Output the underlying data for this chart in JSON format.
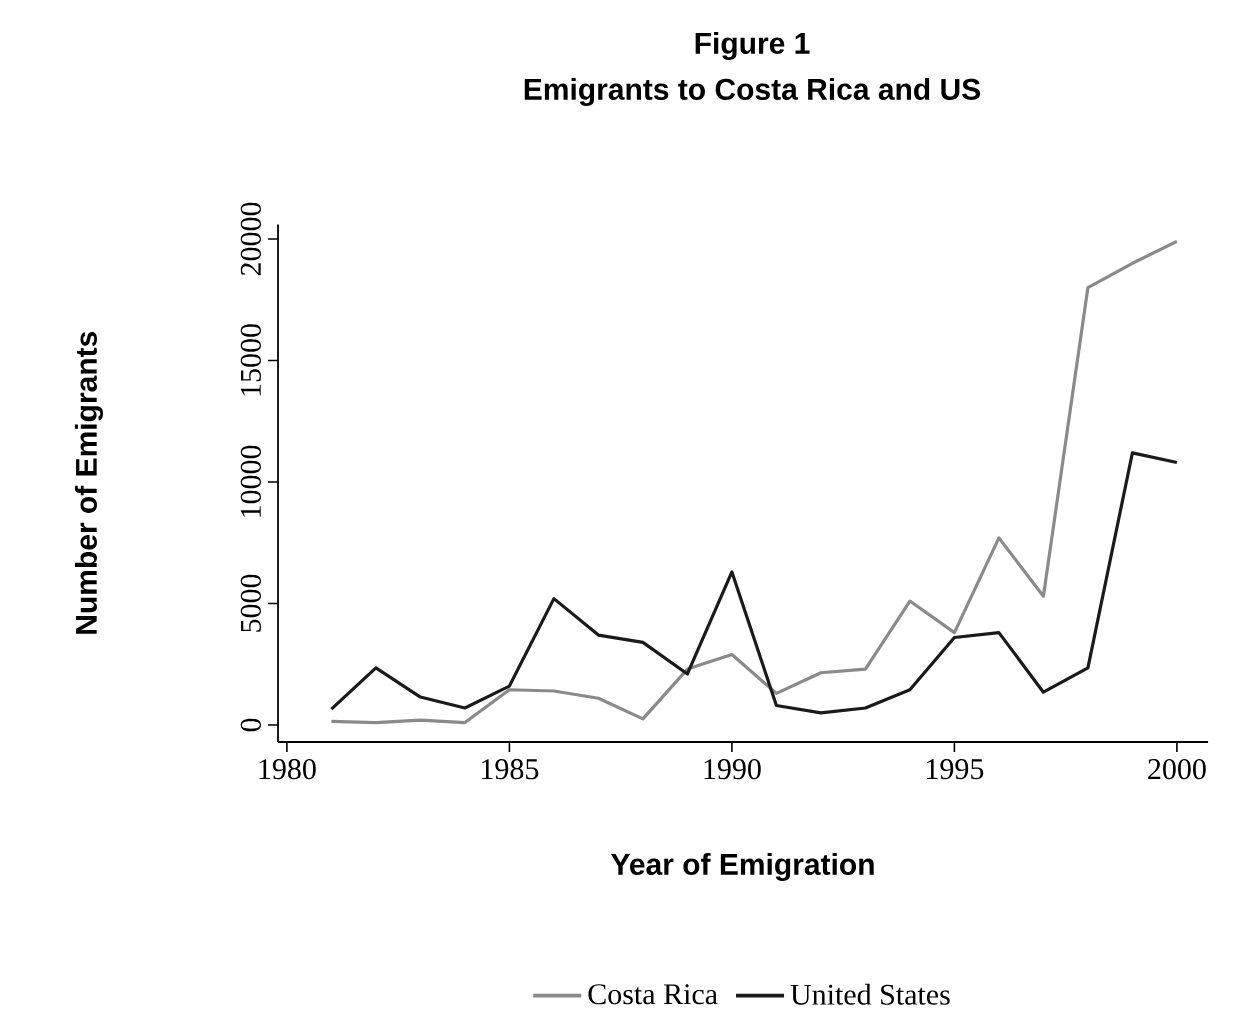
{
  "chart_data": {
    "type": "line",
    "title": "Figure 1",
    "subtitle": "Emigrants to Costa Rica and US",
    "xlabel": "Year of Emigration",
    "ylabel": "Number of Emigrants",
    "x": [
      1981,
      1982,
      1983,
      1984,
      1985,
      1986,
      1987,
      1988,
      1989,
      1990,
      1991,
      1992,
      1993,
      1994,
      1995,
      1996,
      1997,
      1998,
      1999,
      2000
    ],
    "series": [
      {
        "name": "Costa Rica",
        "color": "#8a8a8a",
        "values": [
          150,
          100,
          200,
          100,
          1450,
          1400,
          1100,
          250,
          2300,
          2900,
          1300,
          2150,
          2300,
          5100,
          3800,
          7700,
          5300,
          18000,
          19000,
          19900
        ]
      },
      {
        "name": "United States",
        "color": "#1a1a1a",
        "values": [
          650,
          2350,
          1150,
          700,
          1600,
          5200,
          3700,
          3400,
          2100,
          6300,
          800,
          500,
          700,
          1450,
          3600,
          3800,
          1350,
          2350,
          11200,
          10800
        ]
      }
    ],
    "xlim": [
      1979.8,
      2000.7
    ],
    "ylim": [
      -700,
      20600
    ],
    "xticks": [
      1980,
      1985,
      1990,
      1995,
      2000
    ],
    "yticks": [
      0,
      5000,
      10000,
      15000,
      20000
    ],
    "grid": false,
    "legend": "bottom",
    "marker": "none",
    "line_style": "solid"
  }
}
